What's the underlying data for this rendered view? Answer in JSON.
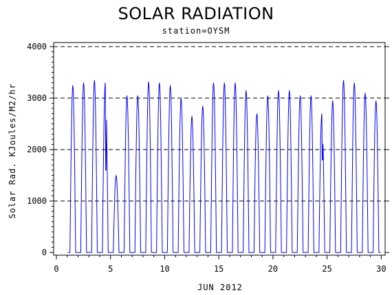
{
  "chart_data": {
    "type": "line",
    "title": "SOLAR RADIATION",
    "subtitle": "station=OYSM",
    "xlabel": "JUN 2012",
    "ylabel": "Solar Rad. KJoules/M2/hr",
    "xlim": [
      0,
      30
    ],
    "ylim": [
      0,
      4000
    ],
    "x_ticks": [
      0,
      5,
      10,
      15,
      20,
      25,
      30
    ],
    "y_ticks": [
      0,
      1000,
      2000,
      3000,
      4000
    ],
    "grid": "horizontal dashed",
    "series": [
      {
        "color": "#0000ff",
        "daily_peaks": [
          {
            "day": 1,
            "peak": 3250
          },
          {
            "day": 2,
            "peak": 3300
          },
          {
            "day": 3,
            "peak": 3350
          },
          {
            "day": 4,
            "peak": 3300,
            "dip": 1600
          },
          {
            "day": 5,
            "peak": 1500
          },
          {
            "day": 6,
            "peak": 3050
          },
          {
            "day": 7,
            "peak": 3050
          },
          {
            "day": 8,
            "peak": 3320
          },
          {
            "day": 9,
            "peak": 3300
          },
          {
            "day": 10,
            "peak": 3250
          },
          {
            "day": 11,
            "peak": 3000
          },
          {
            "day": 12,
            "peak": 2650
          },
          {
            "day": 13,
            "peak": 2850
          },
          {
            "day": 14,
            "peak": 3300
          },
          {
            "day": 15,
            "peak": 3300
          },
          {
            "day": 16,
            "peak": 3300
          },
          {
            "day": 17,
            "peak": 3150
          },
          {
            "day": 18,
            "peak": 2700
          },
          {
            "day": 19,
            "peak": 3050
          },
          {
            "day": 20,
            "peak": 3150
          },
          {
            "day": 21,
            "peak": 3150
          },
          {
            "day": 22,
            "peak": 3050
          },
          {
            "day": 23,
            "peak": 3050
          },
          {
            "day": 24,
            "peak": 2700,
            "dip": 1800
          },
          {
            "day": 25,
            "peak": 2950
          },
          {
            "day": 26,
            "peak": 3350
          },
          {
            "day": 27,
            "peak": 3300
          },
          {
            "day": 28,
            "peak": 3100
          },
          {
            "day": 29,
            "peak": 2950
          }
        ]
      }
    ]
  }
}
